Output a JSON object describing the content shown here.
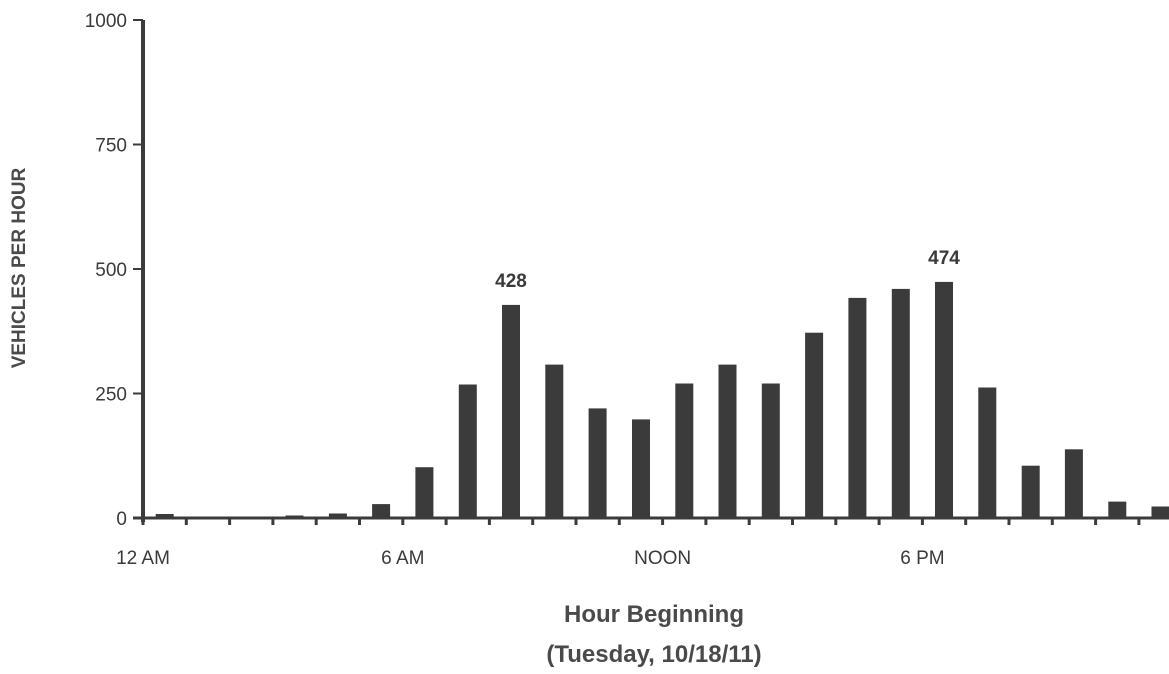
{
  "chart_data": {
    "type": "bar",
    "ylabel": "VEHICLES PER HOUR",
    "xlabel_line1": "Hour Beginning",
    "xlabel_line2": "(Tuesday, 10/18/11)",
    "ylim": [
      0,
      1000
    ],
    "yticks": [
      0,
      250,
      500,
      750,
      1000
    ],
    "x_tick_labels": [
      {
        "label": "12 AM",
        "hour": 0
      },
      {
        "label": "6 AM",
        "hour": 6
      },
      {
        "label": "NOON",
        "hour": 12
      },
      {
        "label": "6 PM",
        "hour": 18
      }
    ],
    "categories": [
      0,
      1,
      2,
      3,
      4,
      5,
      6,
      7,
      8,
      9,
      10,
      11,
      12,
      13,
      14,
      15,
      16,
      17,
      18,
      19,
      20,
      21,
      22,
      23
    ],
    "values": [
      8,
      3,
      3,
      5,
      9,
      28,
      102,
      268,
      428,
      308,
      220,
      198,
      270,
      308,
      270,
      372,
      442,
      460,
      474,
      262,
      105,
      138,
      33,
      23
    ],
    "data_labels": [
      {
        "hour": 8,
        "text": "428"
      },
      {
        "hour": 18,
        "text": "474"
      }
    ],
    "colors": {
      "bar": "#3b3b3b",
      "axis": "#3b3b3b",
      "text": "#3a3a3a"
    }
  }
}
